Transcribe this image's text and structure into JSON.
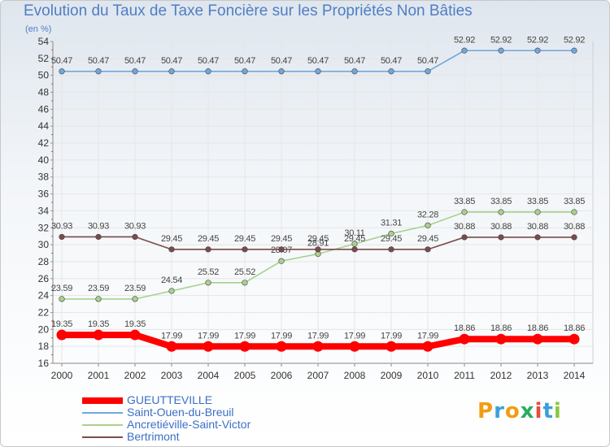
{
  "chart_data": {
    "type": "line",
    "title": "Evolution du Taux de Taxe Foncière sur les Propriétés Non Bâties",
    "ylabel": "(en %)",
    "xlabel": "",
    "categories": [
      "2000",
      "2001",
      "2002",
      "2003",
      "2004",
      "2005",
      "2006",
      "2007",
      "2008",
      "2009",
      "2010",
      "2011",
      "2012",
      "2013",
      "2014"
    ],
    "ylim": [
      16,
      54
    ],
    "yticks": [
      16,
      18,
      20,
      22,
      24,
      26,
      28,
      30,
      32,
      34,
      36,
      38,
      40,
      42,
      44,
      46,
      48,
      50,
      52,
      54
    ],
    "grid": true,
    "legend_position": "bottom-left",
    "series": [
      {
        "name": "GUEUTTEVILLE",
        "color": "#ff0000",
        "values": [
          19.35,
          19.35,
          19.35,
          17.99,
          17.99,
          17.99,
          17.99,
          17.99,
          17.99,
          17.99,
          17.99,
          18.86,
          18.86,
          18.86,
          18.86
        ],
        "labels": [
          "19.35",
          "19.35",
          "19.35",
          "17.99",
          "17.99",
          "17.99",
          "17.99",
          "17.99",
          "17.99",
          "17.99",
          "17.99",
          "18.86",
          "18.86",
          "18.86",
          "18.86"
        ]
      },
      {
        "name": "Saint-Ouen-du-Breuil",
        "color": "#6fa8dc",
        "values": [
          50.47,
          50.47,
          50.47,
          50.47,
          50.47,
          50.47,
          50.47,
          50.47,
          50.47,
          50.47,
          50.47,
          52.92,
          52.92,
          52.92,
          52.92
        ],
        "labels": [
          "50.47",
          "50.47",
          "50.47",
          "50.47",
          "50.47",
          "50.47",
          "50.47",
          "50.47",
          "50.47",
          "50.47",
          "50.47",
          "52.92",
          "52.92",
          "52.92",
          "52.92"
        ]
      },
      {
        "name": "Ancretiéville-Saint-Victor",
        "color": "#a9d18e",
        "values": [
          23.59,
          23.59,
          23.59,
          24.54,
          25.52,
          25.52,
          28.07,
          28.91,
          30.11,
          31.31,
          32.28,
          33.85,
          33.85,
          33.85,
          33.85
        ],
        "labels": [
          "23.59",
          "23.59",
          "23.59",
          "24.54",
          "25.52",
          "25.52",
          "28.07",
          "28.91",
          "30.11",
          "31.31",
          "32.28",
          "33.85",
          "33.85",
          "33.85",
          "33.85"
        ]
      },
      {
        "name": "Bertrimont",
        "color": "#7b4b4b",
        "values": [
          30.93,
          30.93,
          30.93,
          29.45,
          29.45,
          29.45,
          29.45,
          29.45,
          29.45,
          29.45,
          29.45,
          30.88,
          30.88,
          30.88,
          30.88
        ],
        "labels": [
          "30.93",
          "30.93",
          "30.93",
          "29.45",
          "29.45",
          "29.45",
          "29.45",
          "29.45",
          "29.45",
          "29.45",
          "29.45",
          "30.88",
          "30.88",
          "30.88",
          "30.88"
        ]
      }
    ]
  },
  "logo": {
    "letters": [
      "P",
      "r",
      "o",
      "x",
      "i",
      "t",
      "i"
    ],
    "colors": [
      "#f39c12",
      "#3aa0d8",
      "#f39c12",
      "#27ae60",
      "#e74c3c",
      "#3aa0d8",
      "#8cc63f"
    ]
  }
}
